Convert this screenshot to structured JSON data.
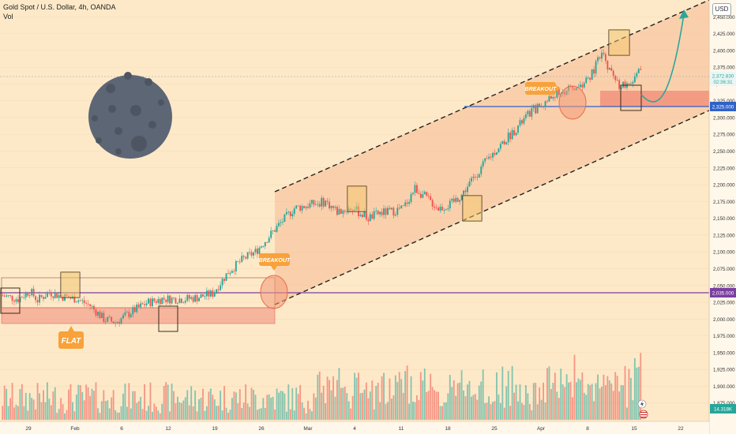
{
  "header": {
    "symbol_line": "Gold Spot / U.S. Dollar, 4h, OANDA",
    "volume_label": "Vol",
    "currency": "USD"
  },
  "annotations": {
    "breakout_left": "BREAKOUT",
    "breakout_right": "BREAKOUT",
    "flat": "FLAT"
  },
  "price_tags": {
    "last_price": "2,372.830",
    "countdown": "02:36:31",
    "resistance": "2,325.000",
    "support": "2,035.000",
    "volume": "14.318K"
  },
  "colors": {
    "background": "#fde9c8",
    "up": "#26a69a",
    "down": "#ef5350",
    "channel_fill": "#f6b28a",
    "support_line": "#7b3fa0",
    "resistance_line": "#2f62c8",
    "badge": "#f7a23a",
    "moon": "#5d6675",
    "arrow": "#2aa79b"
  },
  "chart_data": {
    "type": "candlestick",
    "y_axis": {
      "min": 1850,
      "max": 2475,
      "ticks": [
        "2,450.000",
        "2,425.000",
        "2,400.000",
        "2,375.000",
        "2,350.000",
        "2,325.000",
        "2,300.000",
        "2,275.000",
        "2,250.000",
        "2,225.000",
        "2,200.000",
        "2,175.000",
        "2,150.000",
        "2,125.000",
        "2,100.000",
        "2,075.000",
        "2,050.000",
        "2,025.000",
        "2,000.000",
        "1,975.000",
        "1,950.000",
        "1,925.000",
        "1,900.000",
        "1,875.000"
      ]
    },
    "x_axis": {
      "ticks": [
        "29",
        "Feb",
        "6",
        "12",
        "19",
        "26",
        "Mar",
        "4",
        "11",
        "18",
        "25",
        "Apr",
        "8",
        "15",
        "22"
      ]
    },
    "price_path": [
      [
        0,
        2035
      ],
      [
        8,
        2030
      ],
      [
        14,
        2042
      ],
      [
        18,
        2028
      ],
      [
        24,
        2040
      ],
      [
        30,
        2034
      ],
      [
        38,
        2030
      ],
      [
        45,
        2020
      ],
      [
        52,
        2000
      ],
      [
        58,
        1995
      ],
      [
        66,
        2010
      ],
      [
        74,
        2024
      ],
      [
        82,
        2030
      ],
      [
        88,
        2030
      ],
      [
        94,
        2030
      ],
      [
        100,
        2032
      ],
      [
        108,
        2038
      ],
      [
        116,
        2070
      ],
      [
        124,
        2090
      ],
      [
        130,
        2100
      ],
      [
        136,
        2120
      ],
      [
        142,
        2140
      ],
      [
        150,
        2165
      ],
      [
        158,
        2170
      ],
      [
        166,
        2175
      ],
      [
        172,
        2160
      ],
      [
        180,
        2165
      ],
      [
        188,
        2150
      ],
      [
        194,
        2158
      ],
      [
        200,
        2160
      ],
      [
        206,
        2165
      ],
      [
        212,
        2195
      ],
      [
        218,
        2180
      ],
      [
        224,
        2165
      ],
      [
        230,
        2170
      ],
      [
        236,
        2185
      ],
      [
        242,
        2210
      ],
      [
        250,
        2240
      ],
      [
        258,
        2265
      ],
      [
        266,
        2290
      ],
      [
        272,
        2310
      ],
      [
        278,
        2320
      ],
      [
        284,
        2335
      ],
      [
        290,
        2340
      ],
      [
        296,
        2345
      ],
      [
        302,
        2360
      ],
      [
        308,
        2395
      ],
      [
        312,
        2370
      ],
      [
        316,
        2350
      ],
      [
        322,
        2345
      ],
      [
        328,
        2372
      ]
    ],
    "key_levels": {
      "support": 2035,
      "resistance": 2325
    },
    "volume_series": {
      "name": "Vol",
      "last": "14.318K"
    }
  }
}
